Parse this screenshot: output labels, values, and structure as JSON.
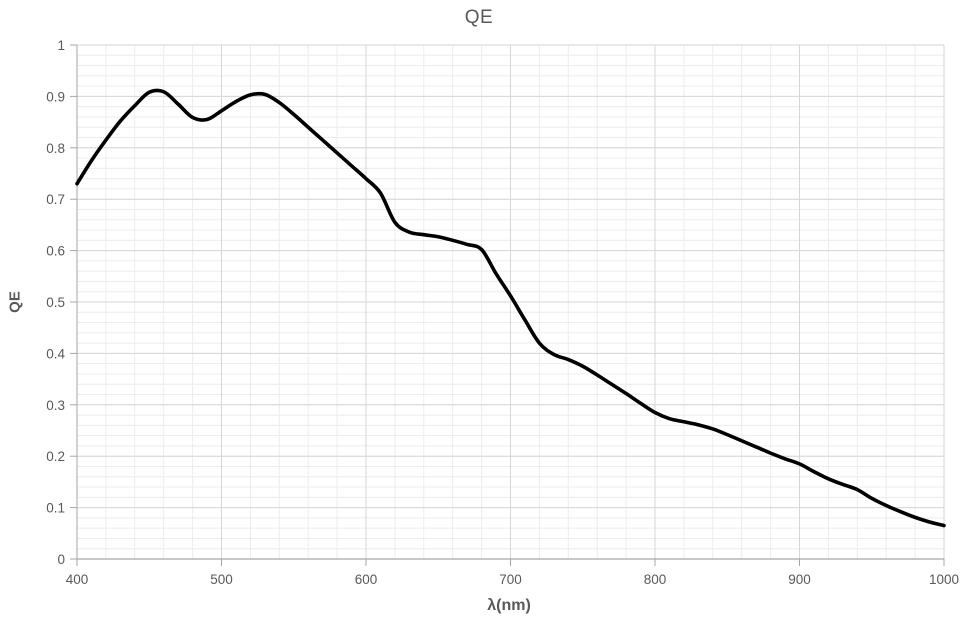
{
  "chart_data": {
    "type": "line",
    "title": "QE",
    "xlabel": "λ(nm)",
    "ylabel": "QE",
    "xlim": [
      400,
      1000
    ],
    "ylim": [
      0,
      1
    ],
    "x_major_step": 100,
    "x_minor_step": 20,
    "y_major_step": 0.1,
    "y_minor_step": 0.02,
    "x_tick_labels": [
      "400",
      "500",
      "600",
      "700",
      "800",
      "900",
      "1000"
    ],
    "y_tick_labels": [
      "0",
      "0.1",
      "0.2",
      "0.3",
      "0.4",
      "0.5",
      "0.6",
      "0.7",
      "0.8",
      "0.9",
      "1"
    ],
    "grid": true,
    "legend_position": "none",
    "x": [
      400,
      410,
      420,
      430,
      440,
      450,
      460,
      470,
      480,
      490,
      500,
      510,
      520,
      530,
      540,
      550,
      560,
      570,
      580,
      590,
      600,
      610,
      620,
      630,
      640,
      650,
      660,
      670,
      680,
      690,
      700,
      710,
      720,
      730,
      740,
      750,
      760,
      770,
      780,
      790,
      800,
      810,
      820,
      830,
      840,
      850,
      860,
      870,
      880,
      890,
      900,
      910,
      920,
      930,
      940,
      950,
      960,
      970,
      980,
      990,
      1000
    ],
    "series": [
      {
        "name": "QE",
        "color": "#000000",
        "stroke_width": 3.6,
        "smooth": true,
        "values": [
          0.73,
          0.775,
          0.815,
          0.852,
          0.882,
          0.908,
          0.909,
          0.885,
          0.859,
          0.855,
          0.872,
          0.89,
          0.903,
          0.904,
          0.888,
          0.865,
          0.84,
          0.815,
          0.79,
          0.765,
          0.74,
          0.712,
          0.655,
          0.636,
          0.631,
          0.627,
          0.62,
          0.612,
          0.602,
          0.555,
          0.512,
          0.465,
          0.42,
          0.398,
          0.388,
          0.375,
          0.358,
          0.34,
          0.322,
          0.303,
          0.285,
          0.273,
          0.267,
          0.261,
          0.253,
          0.242,
          0.23,
          0.218,
          0.206,
          0.195,
          0.185,
          0.17,
          0.156,
          0.145,
          0.135,
          0.118,
          0.104,
          0.092,
          0.081,
          0.072,
          0.065
        ]
      }
    ],
    "colors": {
      "text": "#595959",
      "axis_line": "#a6a6a6",
      "major_grid": "#d6d6d6",
      "minor_grid": "#ececec",
      "background": "#ffffff"
    }
  }
}
